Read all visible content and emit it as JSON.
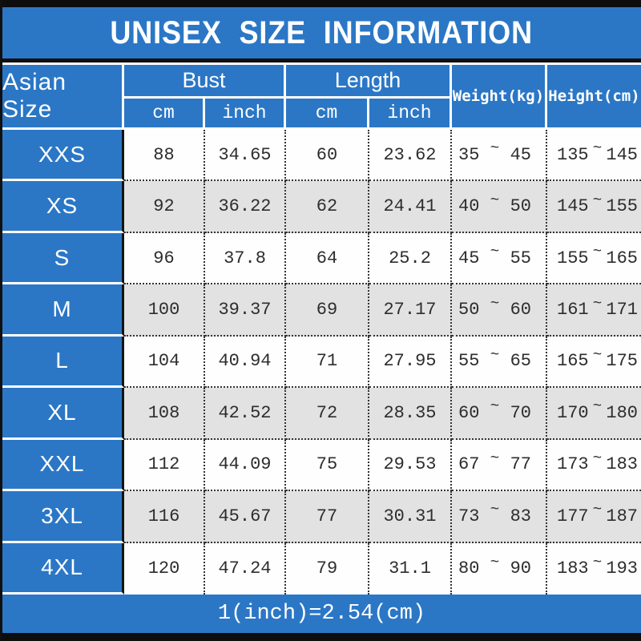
{
  "title": "UNISEX SIZE INFORMATION",
  "footer": "1(inch)=2.54(cm)",
  "colors": {
    "accent_blue": "#2b77c6",
    "row_white": "#fefefe",
    "row_gray": "#e2e2e2",
    "bar_black": "#0d0d0d"
  },
  "table": {
    "size_col_header": "Asian Size",
    "tilde": "~",
    "groups": [
      {
        "label": "Bust",
        "sub": [
          "cm",
          "inch"
        ]
      },
      {
        "label": "Length",
        "sub": [
          "cm",
          "inch"
        ]
      }
    ],
    "single_headers": [
      "Weight(kg)",
      "Height(cm)"
    ],
    "rows": [
      {
        "size": "XXS",
        "bust_cm": "88",
        "bust_inch": "34.65",
        "length_cm": "60",
        "length_inch": "23.62",
        "weight": [
          "35",
          "45"
        ],
        "height": [
          "135",
          "145"
        ]
      },
      {
        "size": "XS",
        "bust_cm": "92",
        "bust_inch": "36.22",
        "length_cm": "62",
        "length_inch": "24.41",
        "weight": [
          "40",
          "50"
        ],
        "height": [
          "145",
          "155"
        ]
      },
      {
        "size": "S",
        "bust_cm": "96",
        "bust_inch": "37.8",
        "length_cm": "64",
        "length_inch": "25.2",
        "weight": [
          "45",
          "55"
        ],
        "height": [
          "155",
          "165"
        ]
      },
      {
        "size": "M",
        "bust_cm": "100",
        "bust_inch": "39.37",
        "length_cm": "69",
        "length_inch": "27.17",
        "weight": [
          "50",
          "60"
        ],
        "height": [
          "161",
          "171"
        ]
      },
      {
        "size": "L",
        "bust_cm": "104",
        "bust_inch": "40.94",
        "length_cm": "71",
        "length_inch": "27.95",
        "weight": [
          "55",
          "65"
        ],
        "height": [
          "165",
          "175"
        ]
      },
      {
        "size": "XL",
        "bust_cm": "108",
        "bust_inch": "42.52",
        "length_cm": "72",
        "length_inch": "28.35",
        "weight": [
          "60",
          "70"
        ],
        "height": [
          "170",
          "180"
        ]
      },
      {
        "size": "XXL",
        "bust_cm": "112",
        "bust_inch": "44.09",
        "length_cm": "75",
        "length_inch": "29.53",
        "weight": [
          "67",
          "77"
        ],
        "height": [
          "173",
          "183"
        ]
      },
      {
        "size": "3XL",
        "bust_cm": "116",
        "bust_inch": "45.67",
        "length_cm": "77",
        "length_inch": "30.31",
        "weight": [
          "73",
          "83"
        ],
        "height": [
          "177",
          "187"
        ]
      },
      {
        "size": "4XL",
        "bust_cm": "120",
        "bust_inch": "47.24",
        "length_cm": "79",
        "length_inch": "31.1",
        "weight": [
          "80",
          "90"
        ],
        "height": [
          "183",
          "193"
        ]
      }
    ]
  }
}
